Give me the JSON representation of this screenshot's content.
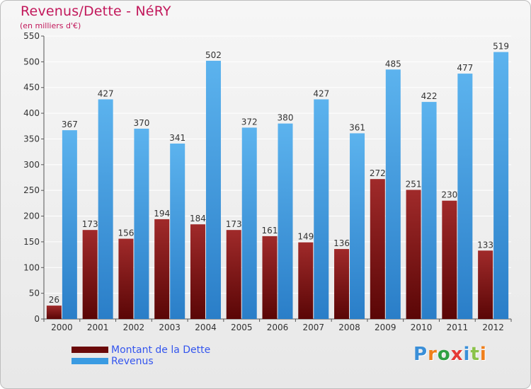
{
  "header": {
    "title": "Revenus/Dette - NéRY",
    "subtitle": "(en milliers d'€)"
  },
  "colors": {
    "dette": "#8b1a1a",
    "revenus": "#3a9be2",
    "title": "#c2185b",
    "legend_text": "#3355ee"
  },
  "chart_data": {
    "type": "bar",
    "title": "Revenus/Dette - NéRY",
    "ylabel": "(en milliers d'€)",
    "xlabel": "",
    "ylim": [
      0,
      550
    ],
    "yticks": [
      0,
      50,
      100,
      150,
      200,
      250,
      300,
      350,
      400,
      450,
      500,
      550
    ],
    "grid": true,
    "legend": "bottom-left",
    "categories": [
      "2000",
      "2001",
      "2002",
      "2003",
      "2004",
      "2005",
      "2006",
      "2007",
      "2008",
      "2009",
      "2010",
      "2011",
      "2012"
    ],
    "series": [
      {
        "name": "Montant de la Dette",
        "values": [
          26,
          173,
          156,
          194,
          184,
          173,
          161,
          149,
          136,
          272,
          251,
          230,
          133
        ]
      },
      {
        "name": "Revenus",
        "values": [
          367,
          427,
          370,
          341,
          502,
          372,
          380,
          427,
          361,
          485,
          422,
          477,
          519
        ]
      }
    ]
  },
  "legend": {
    "items": [
      {
        "label": "Montant de la Dette",
        "color": "#6b0a0a"
      },
      {
        "label": "Revenus",
        "color": "#3a9be2"
      }
    ]
  },
  "logo": {
    "letters": [
      {
        "ch": "P",
        "color": "#3a8fd8"
      },
      {
        "ch": "r",
        "color": "#f07f1a"
      },
      {
        "ch": "o",
        "color": "#2ea043"
      },
      {
        "ch": "x",
        "color": "#e53935"
      },
      {
        "ch": "i",
        "color": "#3a8fd8"
      },
      {
        "ch": "t",
        "color": "#8bc34a"
      },
      {
        "ch": "i",
        "color": "#f07f1a"
      }
    ]
  }
}
